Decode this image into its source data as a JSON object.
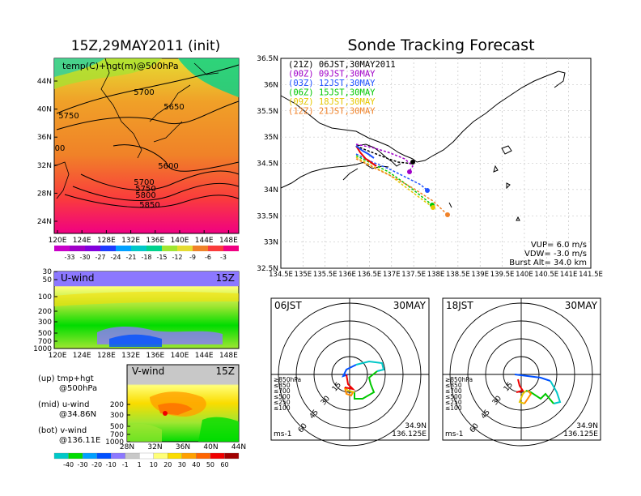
{
  "header": {
    "left_title": "15Z,29MAY2011 (init)",
    "right_title": "Sonde Tracking Forecast"
  },
  "map_panel": {
    "label": "temp(C)+hgt(m)@500hPa",
    "lat_ticks": [
      "44N",
      "40N",
      "36N",
      "32N",
      "28N",
      "24N"
    ],
    "lon_ticks": [
      "120E",
      "124E",
      "128E",
      "132E",
      "136E",
      "140E",
      "144E",
      "148E"
    ],
    "contours": [
      "5700",
      "5750",
      "5650",
      "5600",
      "5700",
      "5750",
      "5800",
      "5850",
      "00"
    ],
    "colorbar": {
      "labels": [
        "-33",
        "-30",
        "-27",
        "-24",
        "-21",
        "-18",
        "-15",
        "-12",
        "-9",
        "-6",
        "-3"
      ],
      "colors": [
        "#a000c8",
        "#8200dc",
        "#1e3cff",
        "#00a0ff",
        "#00c8c8",
        "#00d28c",
        "#a0e632",
        "#e6dc32",
        "#f08228",
        "#fa3c3c",
        "#f00082"
      ]
    }
  },
  "uwind_panel": {
    "label": "U-wind",
    "time": "15Z",
    "y_ticks": [
      "30",
      "50",
      "100",
      "200",
      "300",
      "500",
      "700",
      "1000"
    ],
    "x_ticks": [
      "120E",
      "124E",
      "128E",
      "132E",
      "136E",
      "140E",
      "144E",
      "148E"
    ]
  },
  "vwind_panel": {
    "label": "V-wind",
    "time": "15Z",
    "y_ticks": [
      "200",
      "300",
      "500",
      "700",
      "1000"
    ],
    "x_ticks": [
      "28N",
      "32N",
      "36N",
      "40N",
      "44N"
    ]
  },
  "legend_notes": [
    {
      "line1": "(up) tmp+hgt",
      "line2": "@500hPa"
    },
    {
      "line1": "(mid) u-wind",
      "line2": "@34.86N"
    },
    {
      "line1": "(bot) v-wind",
      "line2": "@136.11E"
    }
  ],
  "wind_colorbar": {
    "labels": [
      "-40",
      "-30",
      "-20",
      "-10",
      "-1",
      "1",
      "10",
      "20",
      "30",
      "40",
      "50",
      "60"
    ],
    "colors": [
      "#00dc00",
      "#00a0ff",
      "#0050ff",
      "#8c78ff",
      "#c8c8c8",
      "#ffffff",
      "#ffff78",
      "#fadc00",
      "#ffa000",
      "#ff6400",
      "#f00000",
      "#a00000"
    ]
  },
  "track_panel": {
    "legend": [
      {
        "text": "(21Z) 06JST,30MAY2011",
        "color": "#000000"
      },
      {
        "text": "(00Z) 09JST,30MAY",
        "color": "#a000c8"
      },
      {
        "text": "(03Z) 12JST,30MAY",
        "color": "#1e50ff"
      },
      {
        "text": "(06Z) 15JST,30MAY",
        "color": "#00c800"
      },
      {
        "text": "(09Z) 18JST,30MAY",
        "color": "#e6c800"
      },
      {
        "text": "(12Z) 21JST,30MAY",
        "color": "#f08228"
      }
    ],
    "lat_ticks": [
      "36.5N",
      "36N",
      "35.5N",
      "35N",
      "34.5N",
      "34N",
      "33.5N",
      "33N",
      "32.5N"
    ],
    "lon_ticks": [
      "134.5E",
      "135E",
      "135.5E",
      "136E",
      "136.5E",
      "137E",
      "137.5E",
      "138E",
      "138.5E",
      "139E",
      "139.5E",
      "140E",
      "140.5E",
      "141E",
      "141.5E"
    ],
    "info": [
      "VUP= 6.0 m/s",
      "VDW= -3.0 m/s",
      "Burst Alt= 34.0 km"
    ]
  },
  "hodo_06": {
    "time": "06JST",
    "date": "30MAY",
    "rings": [
      "15",
      "30",
      "45",
      "60"
    ],
    "unit": "ms-1",
    "lat": "34.9N",
    "lon": "136.125E",
    "levels": [
      {
        "text": "≥850hPa",
        "color": "#f00000"
      },
      {
        "text": "≤850",
        "color": "#ff8c00"
      },
      {
        "text": "≤700",
        "color": "#e6c800"
      },
      {
        "text": "≤500",
        "color": "#00c800"
      },
      {
        "text": "≤250",
        "color": "#00c8c8"
      },
      {
        "text": "≤100",
        "color": "#0050ff"
      }
    ]
  },
  "hodo_18": {
    "time": "18JST",
    "date": "30MAY",
    "rings": [
      "15",
      "30",
      "45",
      "60"
    ],
    "unit": "ms-1",
    "lat": "34.9N",
    "lon": "136.125E",
    "levels": [
      {
        "text": "≥850hPa",
        "color": "#f00000"
      },
      {
        "text": "≤850",
        "color": "#ff8c00"
      },
      {
        "text": "≤700",
        "color": "#e6c800"
      },
      {
        "text": "≤500",
        "color": "#00c800"
      },
      {
        "text": "≤250",
        "color": "#00c8c8"
      },
      {
        "text": "≤100",
        "color": "#0050ff"
      }
    ]
  }
}
